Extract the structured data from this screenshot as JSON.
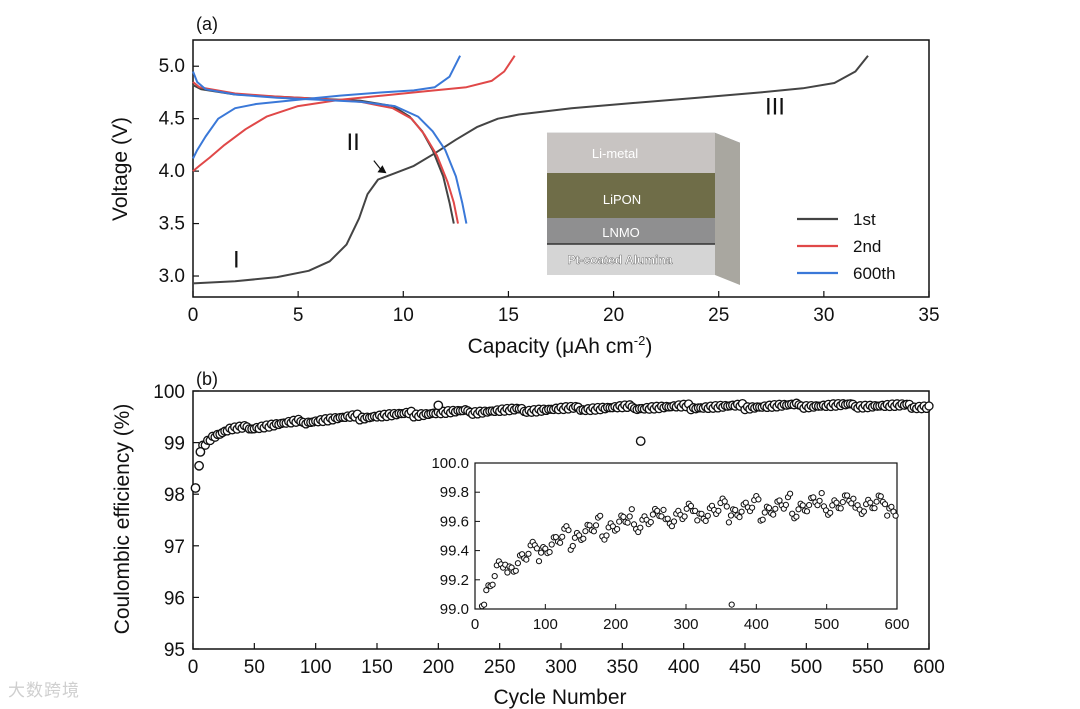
{
  "chart_data": [
    {
      "type": "line",
      "panel_label": "(a)",
      "xlabel_main": "Capacity (",
      "xlabel_unit": "μAh cm",
      "xlabel_sup": "-2",
      "xlabel_end": ")",
      "ylabel": "Voltage (V)",
      "xlim": [
        0,
        35
      ],
      "ylim": [
        2.8,
        5.25
      ],
      "xticks": [
        0,
        5,
        10,
        15,
        20,
        25,
        30,
        35
      ],
      "yticks": [
        3.0,
        3.5,
        4.0,
        4.5,
        5.0
      ],
      "ytick_labels": [
        "3.0",
        "3.5",
        "4.0",
        "4.5",
        "5.0"
      ],
      "legend": [
        {
          "name": "1st",
          "color": "#444444"
        },
        {
          "name": "2nd",
          "color": "#e04848"
        },
        {
          "name": "600th",
          "color": "#3a78d8"
        }
      ],
      "region_labels": [
        {
          "text": "I",
          "x": 1.9,
          "y": 3.08
        },
        {
          "text": "II",
          "x": 7.3,
          "y": 4.2
        },
        {
          "text": "III",
          "x": 27.2,
          "y": 4.54
        }
      ],
      "arrow": {
        "from": [
          8.6,
          4.1
        ],
        "to": [
          9.2,
          3.98
        ]
      },
      "series": [
        {
          "name": "1st",
          "color": "#444444",
          "points": [
            [
              0,
              2.93
            ],
            [
              2,
              2.95
            ],
            [
              4,
              2.99
            ],
            [
              5.5,
              3.05
            ],
            [
              6.5,
              3.14
            ],
            [
              7.3,
              3.3
            ],
            [
              7.9,
              3.55
            ],
            [
              8.3,
              3.78
            ],
            [
              8.8,
              3.92
            ],
            [
              9.6,
              3.98
            ],
            [
              10.5,
              4.05
            ],
            [
              11.5,
              4.17
            ],
            [
              12.5,
              4.3
            ],
            [
              13.5,
              4.42
            ],
            [
              14.5,
              4.5
            ],
            [
              15.5,
              4.54
            ],
            [
              18,
              4.6
            ],
            [
              21,
              4.65
            ],
            [
              24,
              4.7
            ],
            [
              27,
              4.75
            ],
            [
              29,
              4.79
            ],
            [
              30.5,
              4.84
            ],
            [
              31.5,
              4.95
            ],
            [
              32.1,
              5.1
            ]
          ]
        },
        {
          "name": "1st-discharge",
          "color": "#444444",
          "points": [
            [
              0,
              4.82
            ],
            [
              0.4,
              4.78
            ],
            [
              2,
              4.73
            ],
            [
              4,
              4.71
            ],
            [
              6,
              4.69
            ],
            [
              8,
              4.67
            ],
            [
              9.5,
              4.62
            ],
            [
              10.3,
              4.52
            ],
            [
              10.9,
              4.38
            ],
            [
              11.4,
              4.2
            ],
            [
              11.9,
              3.95
            ],
            [
              12.2,
              3.7
            ],
            [
              12.4,
              3.5
            ]
          ]
        },
        {
          "name": "2nd",
          "color": "#e04848",
          "points": [
            [
              0,
              4.0
            ],
            [
              0.3,
              4.05
            ],
            [
              0.8,
              4.13
            ],
            [
              1.5,
              4.25
            ],
            [
              2.5,
              4.4
            ],
            [
              3.5,
              4.52
            ],
            [
              5,
              4.62
            ],
            [
              7,
              4.68
            ],
            [
              9,
              4.72
            ],
            [
              11,
              4.76
            ],
            [
              13,
              4.8
            ],
            [
              14.2,
              4.86
            ],
            [
              14.8,
              4.95
            ],
            [
              15.3,
              5.1
            ]
          ]
        },
        {
          "name": "2nd-discharge",
          "color": "#e04848",
          "points": [
            [
              0,
              4.85
            ],
            [
              0.3,
              4.8
            ],
            [
              2,
              4.74
            ],
            [
              4,
              4.71
            ],
            [
              6,
              4.69
            ],
            [
              8,
              4.66
            ],
            [
              9.5,
              4.6
            ],
            [
              10.4,
              4.5
            ],
            [
              11,
              4.35
            ],
            [
              11.6,
              4.15
            ],
            [
              12.1,
              3.9
            ],
            [
              12.4,
              3.7
            ],
            [
              12.6,
              3.5
            ]
          ]
        },
        {
          "name": "600th",
          "color": "#3a78d8",
          "points": [
            [
              0,
              4.12
            ],
            [
              0.2,
              4.2
            ],
            [
              0.6,
              4.33
            ],
            [
              1.2,
              4.5
            ],
            [
              2,
              4.6
            ],
            [
              3,
              4.64
            ],
            [
              5,
              4.68
            ],
            [
              7,
              4.72
            ],
            [
              9,
              4.75
            ],
            [
              10.5,
              4.77
            ],
            [
              11.5,
              4.8
            ],
            [
              12.2,
              4.9
            ],
            [
              12.7,
              5.1
            ]
          ]
        },
        {
          "name": "600th-discharge",
          "color": "#3a78d8",
          "points": [
            [
              0,
              4.95
            ],
            [
              0.2,
              4.85
            ],
            [
              0.6,
              4.78
            ],
            [
              2,
              4.73
            ],
            [
              4,
              4.7
            ],
            [
              6,
              4.68
            ],
            [
              8,
              4.66
            ],
            [
              9.6,
              4.62
            ],
            [
              10.7,
              4.52
            ],
            [
              11.4,
              4.38
            ],
            [
              12,
              4.2
            ],
            [
              12.5,
              3.95
            ],
            [
              12.8,
              3.7
            ],
            [
              13,
              3.5
            ]
          ]
        }
      ],
      "inset_diagram": {
        "layers": [
          {
            "label": "Li-metal",
            "color": "#c8c4c2"
          },
          {
            "label": "LiPON",
            "color": "#6f6d48"
          },
          {
            "label": "LNMO",
            "color": "#8f8f90"
          },
          {
            "label": "Pt-coated Alumina",
            "color": "#d5d5d5"
          }
        ]
      }
    },
    {
      "type": "scatter",
      "panel_label": "(b)",
      "xlabel": "Cycle Number",
      "ylabel": "Coulombic efficiency (%)",
      "xlim": [
        0,
        600
      ],
      "ylim": [
        95,
        100
      ],
      "xticks": [
        0,
        50,
        100,
        150,
        200,
        250,
        300,
        350,
        400,
        450,
        500,
        550,
        600
      ],
      "yticks": [
        95,
        96,
        97,
        98,
        99,
        100
      ],
      "outliers": [
        [
          2,
          98.12
        ],
        [
          5,
          98.55
        ],
        [
          6,
          98.82
        ],
        [
          200,
          99.72
        ],
        [
          365,
          99.03
        ]
      ],
      "trend": [
        [
          8,
          98.95
        ],
        [
          15,
          99.1
        ],
        [
          30,
          99.25
        ],
        [
          50,
          99.3
        ],
        [
          75,
          99.37
        ],
        [
          100,
          99.43
        ],
        [
          125,
          99.48
        ],
        [
          150,
          99.52
        ],
        [
          175,
          99.55
        ],
        [
          200,
          99.58
        ],
        [
          250,
          99.62
        ],
        [
          300,
          99.65
        ],
        [
          350,
          99.68
        ],
        [
          400,
          99.69
        ],
        [
          450,
          99.7
        ],
        [
          500,
          99.72
        ],
        [
          550,
          99.72
        ],
        [
          600,
          99.7
        ]
      ],
      "inset": {
        "xlim": [
          0,
          600
        ],
        "ylim": [
          99.0,
          100.0
        ],
        "xticks": [
          0,
          100,
          200,
          300,
          400,
          500,
          600
        ],
        "yticks": [
          99.0,
          99.2,
          99.4,
          99.6,
          99.8,
          100.0
        ],
        "ytick_labels": [
          "99.0",
          "99.2",
          "99.4",
          "99.6",
          "99.8",
          "100.0"
        ]
      }
    }
  ],
  "watermark": "大数跨境"
}
